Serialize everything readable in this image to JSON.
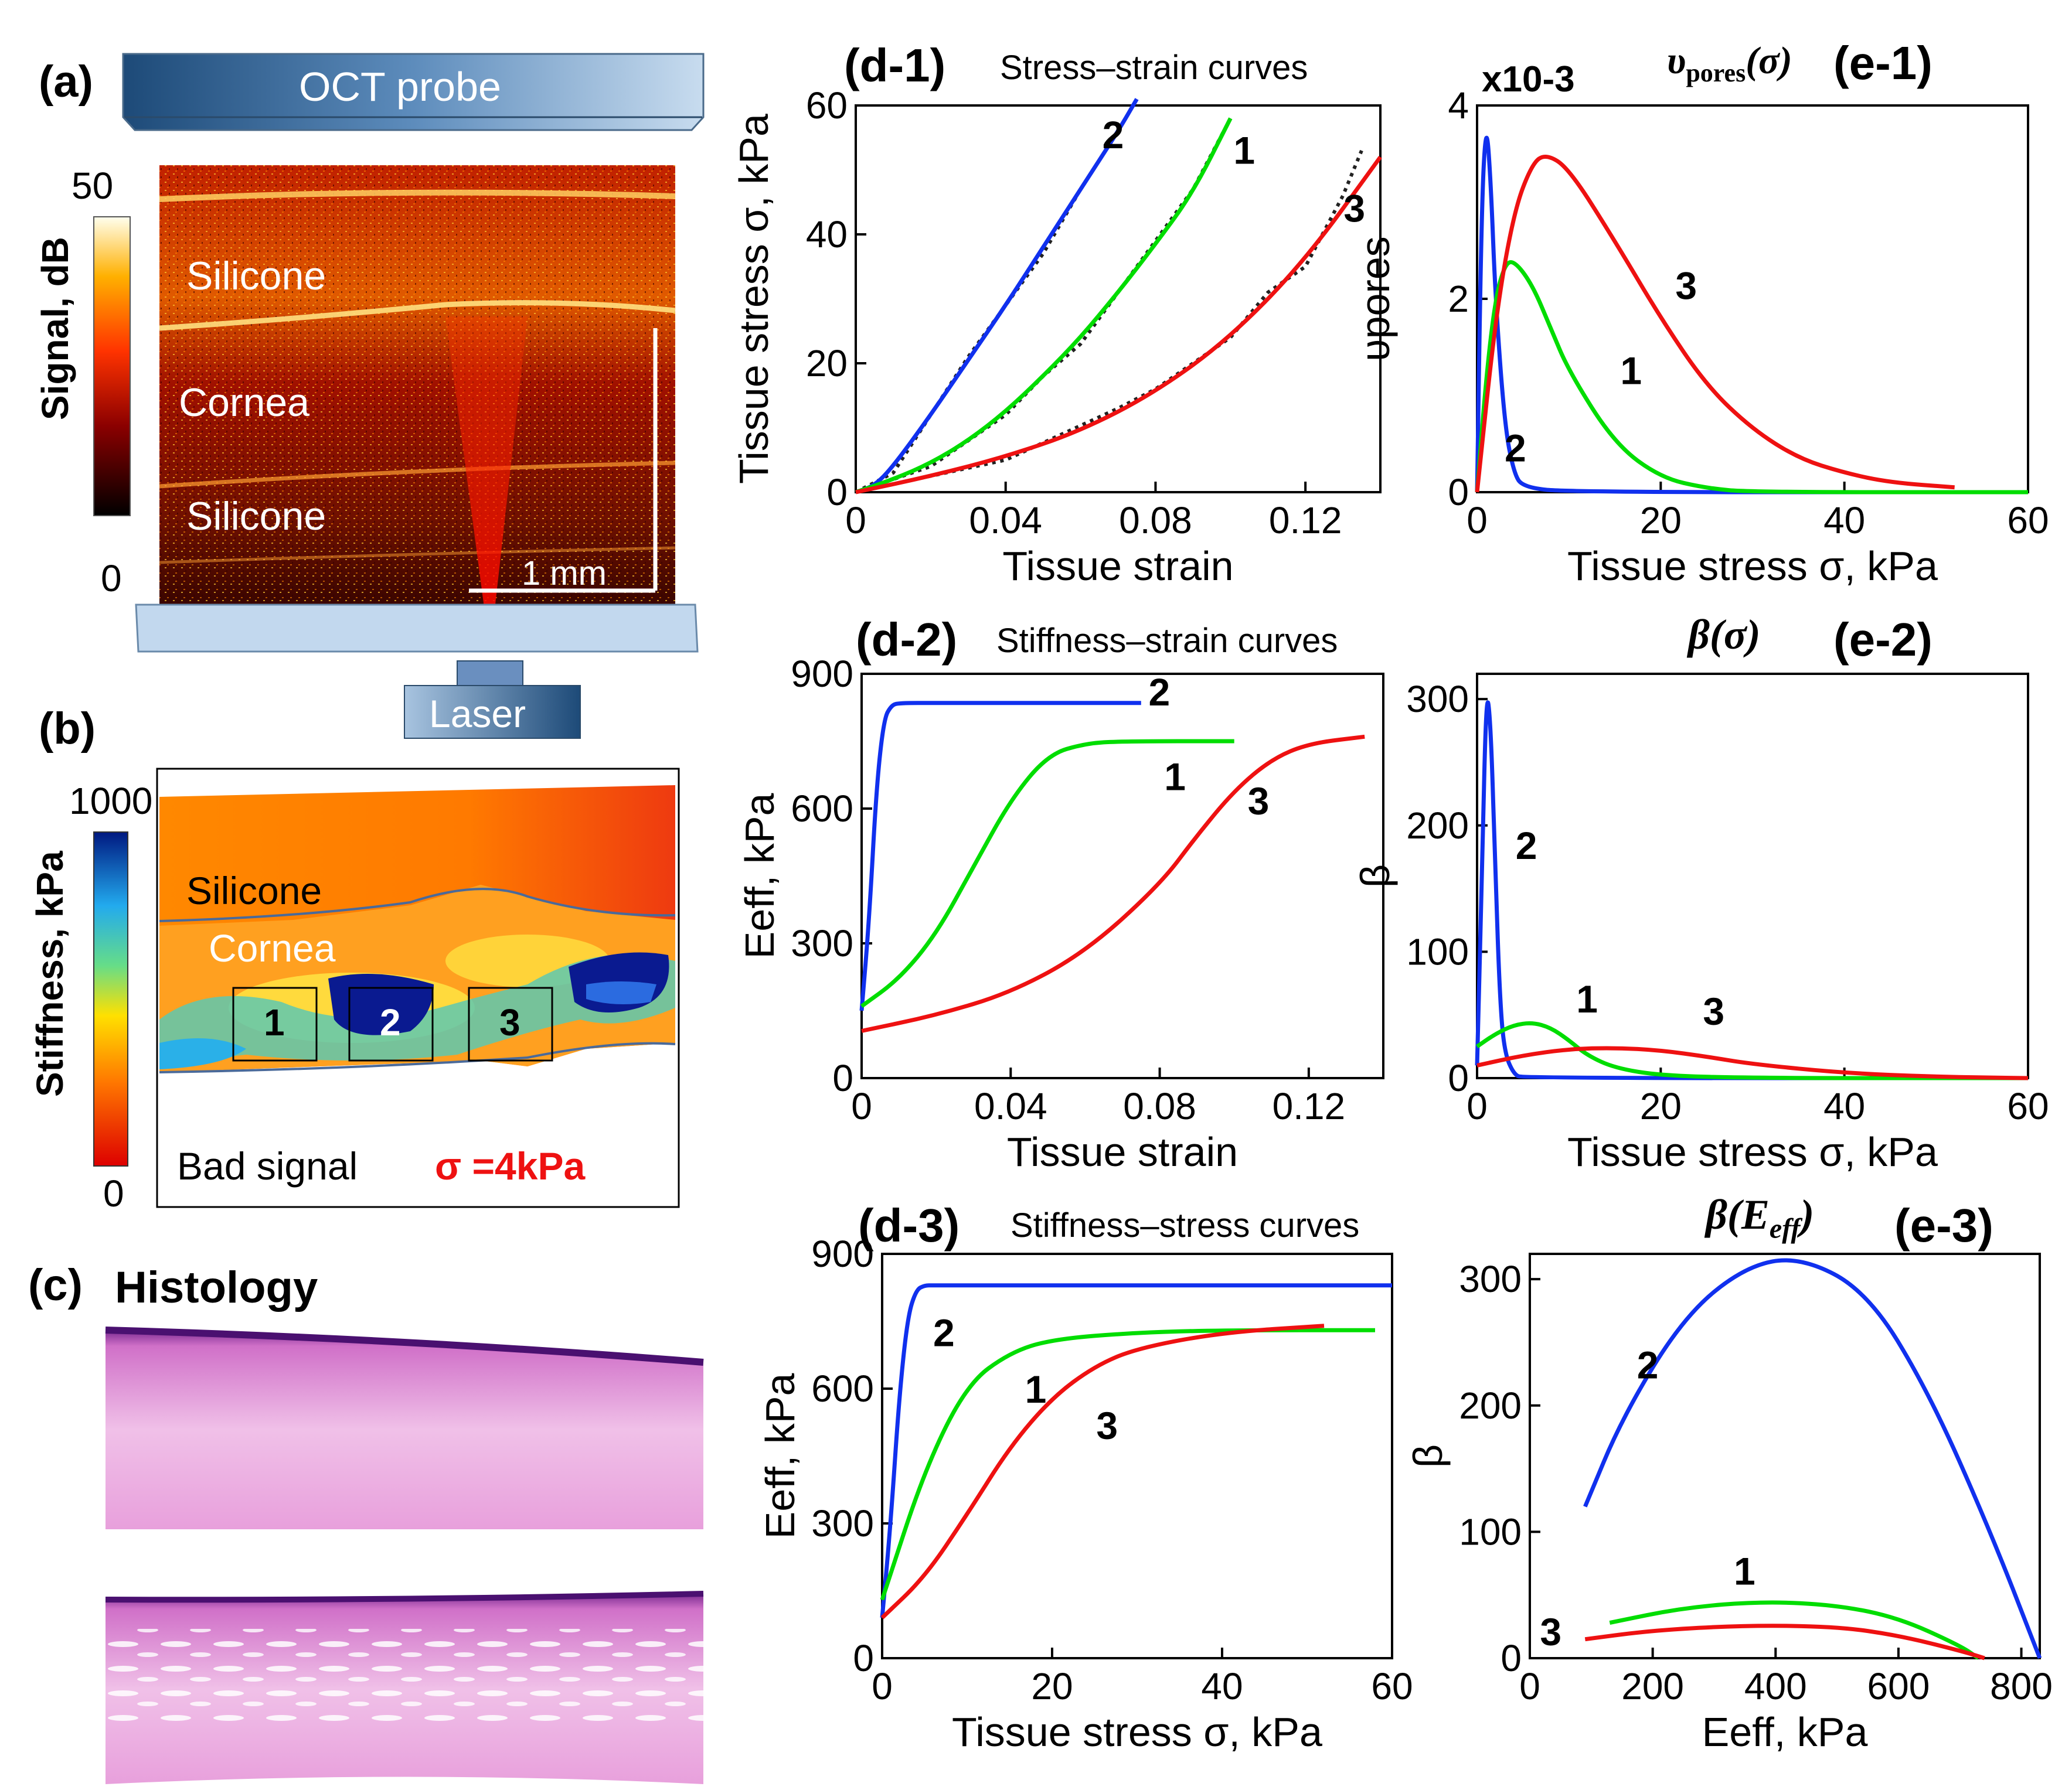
{
  "panels": {
    "a": {
      "label": "(a)",
      "probe_label": "OCT probe",
      "colorbar_title": "Signal, dB",
      "colorbar_max": "50",
      "colorbar_min": "0",
      "layers": [
        "Silicone",
        "Cornea",
        "Silicone"
      ],
      "scale_bar": "1 mm",
      "laser_label": "Laser"
    },
    "b": {
      "label": "(b)",
      "colorbar_title": "Stiffness, kPa",
      "colorbar_max": "1000",
      "colorbar_min": "0",
      "layers": [
        "Silicone",
        "Cornea"
      ],
      "regions": [
        "1",
        "2",
        "3"
      ],
      "bad_signal": "Bad signal",
      "sigma_note": "σ =4kPa"
    },
    "c": {
      "label": "(c)",
      "title": "Histology"
    }
  },
  "colors": {
    "curve1": "#00dd00",
    "curve2": "#1030ee",
    "curve3": "#ee1111",
    "experiment": "#222222"
  },
  "chart_data": [
    {
      "id": "d1",
      "panel_label": "(d-1)",
      "type": "line",
      "title": "Stress–strain curves",
      "xlabel": "Tissue strain",
      "ylabel": "Tissue stress σ, kPa",
      "xlim": [
        0,
        0.14
      ],
      "ylim": [
        0,
        60
      ],
      "xticks": [
        "0",
        "0.04",
        "0.08",
        "0.12"
      ],
      "yticks": [
        "0",
        "20",
        "40",
        "60"
      ],
      "series": [
        {
          "name": "2",
          "color": "#1030ee",
          "x": [
            0,
            0.005,
            0.01,
            0.02,
            0.03,
            0.04,
            0.05,
            0.06,
            0.07,
            0.075
          ],
          "y": [
            0,
            1,
            4,
            12,
            20.5,
            29,
            38,
            47,
            56,
            61
          ]
        },
        {
          "name": "1",
          "color": "#00dd00",
          "x": [
            0,
            0.01,
            0.02,
            0.03,
            0.04,
            0.05,
            0.06,
            0.07,
            0.08,
            0.09,
            0.1
          ],
          "y": [
            0,
            2,
            4.5,
            8,
            12.5,
            18,
            24,
            31,
            38.5,
            46.5,
            58
          ]
        },
        {
          "name": "3",
          "color": "#ee1111",
          "x": [
            0,
            0.02,
            0.04,
            0.06,
            0.08,
            0.1,
            0.12,
            0.14
          ],
          "y": [
            0,
            2.5,
            5.5,
            9.5,
            15.5,
            24,
            36,
            52
          ]
        }
      ],
      "experiment": [
        {
          "x": [
            0,
            0.01,
            0.02,
            0.03,
            0.04,
            0.05,
            0.06,
            0.07,
            0.075
          ],
          "y": [
            0,
            3,
            12,
            21,
            29,
            37,
            47,
            56,
            61
          ]
        },
        {
          "x": [
            0,
            0.02,
            0.04,
            0.05,
            0.06,
            0.07,
            0.08,
            0.09,
            0.1
          ],
          "y": [
            0,
            4,
            12,
            18,
            23,
            31,
            39,
            47,
            58
          ]
        },
        {
          "x": [
            0,
            0.04,
            0.07,
            0.08,
            0.1,
            0.11,
            0.12,
            0.13,
            0.135
          ],
          "y": [
            0,
            5,
            13,
            16,
            24,
            31,
            35,
            46,
            53
          ]
        }
      ],
      "curve_labels": [
        "2",
        "1",
        "3"
      ]
    },
    {
      "id": "e1",
      "panel_label": "(e-1)",
      "type": "line",
      "title": "υpores(σ)",
      "xlabel": "Tissue stress σ, kPa",
      "ylabel": "υpores",
      "exponent": "x10-3",
      "xlim": [
        0,
        60
      ],
      "ylim": [
        0,
        4
      ],
      "xticks": [
        "0",
        "20",
        "40",
        "60"
      ],
      "yticks": [
        "0",
        "2",
        "4"
      ],
      "series": [
        {
          "name": "2",
          "color": "#1030ee",
          "x": [
            0,
            0.5,
            1,
            1.5,
            2,
            3,
            4,
            5,
            10,
            60
          ],
          "y": [
            0,
            3.0,
            3.85,
            3.2,
            2.0,
            0.7,
            0.2,
            0.05,
            0,
            0
          ]
        },
        {
          "name": "1",
          "color": "#00dd00",
          "x": [
            0,
            1,
            2,
            3,
            4,
            6,
            8,
            10,
            15,
            20,
            25,
            30,
            60
          ],
          "y": [
            0,
            1.2,
            2.0,
            2.35,
            2.4,
            2.15,
            1.7,
            1.25,
            0.5,
            0.15,
            0.04,
            0,
            0
          ]
        },
        {
          "name": "3",
          "color": "#ee1111",
          "x": [
            0,
            2,
            4,
            6,
            7.5,
            10,
            15,
            20,
            25,
            30,
            35,
            40,
            45,
            52
          ],
          "y": [
            0,
            1.8,
            2.9,
            3.4,
            3.5,
            3.35,
            2.6,
            1.8,
            1.1,
            0.65,
            0.35,
            0.2,
            0.1,
            0.05
          ]
        }
      ],
      "curve_labels": [
        "2",
        "1",
        "3"
      ]
    },
    {
      "id": "d2",
      "panel_label": "(d-2)",
      "type": "line",
      "title": "Stiffness–strain curves",
      "xlabel": "Tissue strain",
      "ylabel": "Eeff, kPa",
      "xlim": [
        0,
        0.14
      ],
      "ylim": [
        0,
        900
      ],
      "xticks": [
        "0",
        "0.04",
        "0.08",
        "0.12"
      ],
      "yticks": [
        "0",
        "300",
        "600",
        "900"
      ],
      "series": [
        {
          "name": "2",
          "color": "#1030ee",
          "x": [
            0,
            0.002,
            0.004,
            0.006,
            0.008,
            0.01,
            0.02,
            0.075
          ],
          "y": [
            150,
            350,
            650,
            800,
            830,
            835,
            835,
            835
          ]
        },
        {
          "name": "1",
          "color": "#00dd00",
          "x": [
            0,
            0.01,
            0.02,
            0.03,
            0.04,
            0.05,
            0.06,
            0.07,
            0.1
          ],
          "y": [
            160,
            220,
            320,
            470,
            620,
            720,
            745,
            750,
            750
          ]
        },
        {
          "name": "3",
          "color": "#ee1111",
          "x": [
            0,
            0.02,
            0.04,
            0.06,
            0.08,
            0.09,
            0.1,
            0.11,
            0.12,
            0.135
          ],
          "y": [
            105,
            140,
            190,
            280,
            430,
            540,
            640,
            710,
            745,
            760
          ]
        }
      ],
      "curve_labels": [
        "2",
        "1",
        "3"
      ]
    },
    {
      "id": "e2",
      "panel_label": "(e-2)",
      "type": "line",
      "title": "β(σ)",
      "xlabel": "Tissue stress σ, kPa",
      "ylabel": "β",
      "xlim": [
        0,
        60
      ],
      "ylim": [
        0,
        320
      ],
      "xticks": [
        "0",
        "20",
        "40",
        "60"
      ],
      "yticks": [
        "0",
        "100",
        "200",
        "300"
      ],
      "series": [
        {
          "name": "2",
          "color": "#1030ee",
          "x": [
            0,
            0.5,
            1,
            1.5,
            2,
            2.5,
            3,
            4,
            5,
            60
          ],
          "y": [
            10,
            150,
            310,
            280,
            160,
            60,
            20,
            3,
            0,
            0
          ]
        },
        {
          "name": "1",
          "color": "#00dd00",
          "x": [
            0,
            2,
            4,
            6,
            8,
            10,
            12,
            15,
            20,
            30,
            60
          ],
          "y": [
            25,
            35,
            42,
            44,
            40,
            30,
            18,
            8,
            2,
            0,
            0
          ]
        },
        {
          "name": "3",
          "color": "#ee1111",
          "x": [
            0,
            5,
            10,
            15,
            20,
            25,
            30,
            40,
            50,
            60
          ],
          "y": [
            10,
            18,
            23,
            24,
            22,
            17,
            11,
            4,
            1,
            0
          ]
        }
      ],
      "curve_labels": [
        "2",
        "1",
        "3"
      ]
    },
    {
      "id": "d3",
      "panel_label": "(d-3)",
      "type": "line",
      "title": "Stiffness–stress curves",
      "xlabel": "Tissue stress σ, kPa",
      "ylabel": "Eeff, kPa",
      "xlim": [
        0,
        60
      ],
      "ylim": [
        0,
        900
      ],
      "xticks": [
        "0",
        "20",
        "40",
        "60"
      ],
      "yticks": [
        "0",
        "300",
        "600",
        "900"
      ],
      "series": [
        {
          "name": "2",
          "color": "#1030ee",
          "x": [
            0,
            1,
            2,
            3,
            4,
            5,
            6,
            60
          ],
          "y": [
            90,
            300,
            580,
            760,
            820,
            830,
            830,
            830
          ]
        },
        {
          "name": "1",
          "color": "#00dd00",
          "x": [
            0,
            5,
            10,
            15,
            20,
            30,
            40,
            58
          ],
          "y": [
            130,
            420,
            610,
            680,
            710,
            725,
            730,
            730
          ]
        },
        {
          "name": "3",
          "color": "#ee1111",
          "x": [
            0,
            5,
            10,
            15,
            20,
            25,
            30,
            40,
            52
          ],
          "y": [
            90,
            180,
            320,
            470,
            580,
            650,
            690,
            725,
            740
          ]
        }
      ],
      "curve_labels": [
        "2",
        "1",
        "3"
      ]
    },
    {
      "id": "e3",
      "panel_label": "(e-3)",
      "type": "line",
      "title": "β(Eeff)",
      "xlabel": "Eeff, kPa",
      "ylabel": "β",
      "xlim": [
        0,
        830
      ],
      "ylim": [
        0,
        320
      ],
      "xticks": [
        "0",
        "200",
        "400",
        "600",
        "800"
      ],
      "yticks": [
        "0",
        "100",
        "200",
        "300"
      ],
      "series": [
        {
          "name": "2",
          "color": "#1030ee",
          "x": [
            90,
            150,
            250,
            350,
            440,
            550,
            650,
            750,
            830
          ],
          "y": [
            120,
            190,
            270,
            310,
            318,
            290,
            210,
            100,
            0
          ]
        },
        {
          "name": "1",
          "color": "#00dd00",
          "x": [
            130,
            250,
            380,
            500,
            600,
            700,
            730
          ],
          "y": [
            28,
            40,
            45,
            42,
            32,
            10,
            0
          ]
        },
        {
          "name": "3",
          "color": "#ee1111",
          "x": [
            90,
            200,
            350,
            500,
            600,
            700,
            740
          ],
          "y": [
            15,
            22,
            26,
            25,
            18,
            6,
            0
          ]
        }
      ],
      "curve_labels": [
        "2",
        "1",
        "3"
      ]
    }
  ]
}
